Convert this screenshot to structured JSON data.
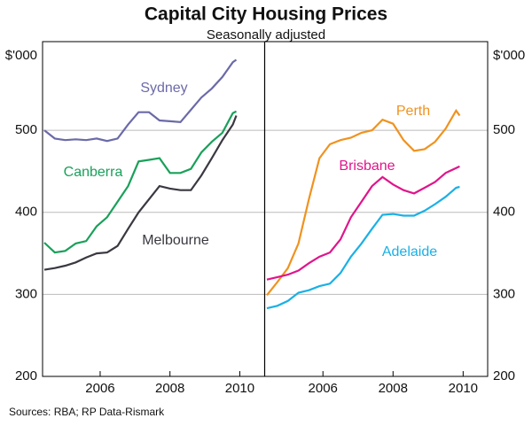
{
  "title": "Capital City Housing Prices",
  "subtitle": "Seasonally adjusted",
  "source": "Sources: RBA; RP Data-Rismark",
  "chart_data": [
    {
      "type": "line",
      "y_label": "$'000",
      "x": [
        2004.4,
        2004.7,
        2005.0,
        2005.3,
        2005.6,
        2005.9,
        2006.2,
        2006.5,
        2006.8,
        2007.1,
        2007.4,
        2007.7,
        2008.0,
        2008.3,
        2008.6,
        2008.9,
        2009.2,
        2009.5,
        2009.8,
        2009.9
      ],
      "xlim": [
        2004.35,
        2010.7
      ],
      "xticks": [
        2006,
        2008,
        2010
      ],
      "ylim": [
        200,
        600
      ],
      "yticks": [
        200,
        300,
        400,
        500
      ],
      "grid": true,
      "series": [
        {
          "name": "Sydney",
          "color": "#6b6aa8",
          "values": [
            500,
            490,
            488,
            489,
            488,
            490,
            487,
            490,
            507,
            522,
            522,
            512,
            511,
            510,
            525,
            540,
            551,
            565,
            583,
            586
          ]
        },
        {
          "name": "Canberra",
          "color": "#1aa05a",
          "values": [
            363,
            351,
            353,
            362,
            365,
            383,
            394,
            413,
            432,
            462,
            464,
            466,
            448,
            448,
            453,
            473,
            486,
            497,
            521,
            523
          ]
        },
        {
          "name": "Melbourne",
          "color": "#3a3840",
          "values": [
            330,
            332,
            335,
            339,
            345,
            350,
            351,
            359,
            380,
            400,
            416,
            432,
            429,
            427,
            427,
            445,
            466,
            488,
            507,
            518
          ]
        }
      ]
    },
    {
      "type": "line",
      "y_label": "$'000",
      "x": [
        2004.4,
        2004.7,
        2005.0,
        2005.3,
        2005.6,
        2005.9,
        2006.2,
        2006.5,
        2006.8,
        2007.1,
        2007.4,
        2007.7,
        2008.0,
        2008.3,
        2008.6,
        2008.9,
        2009.2,
        2009.5,
        2009.8,
        2009.9
      ],
      "xlim": [
        2004.35,
        2010.7
      ],
      "xticks": [
        2006,
        2008,
        2010
      ],
      "ylim": [
        200,
        600
      ],
      "yticks": [
        200,
        300,
        400,
        500
      ],
      "grid": true,
      "series": [
        {
          "name": "Perth",
          "color": "#f0921e",
          "values": [
            299,
            315,
            332,
            362,
            416,
            466,
            483,
            488,
            491,
            497,
            500,
            513,
            508,
            488,
            475,
            477,
            486,
            502,
            524,
            518
          ]
        },
        {
          "name": "Brisbane",
          "color": "#e0158b",
          "values": [
            318,
            321,
            324,
            329,
            338,
            346,
            351,
            367,
            394,
            413,
            432,
            443,
            434,
            427,
            423,
            430,
            437,
            448,
            454,
            456
          ]
        },
        {
          "name": "Adelaide",
          "color": "#1ab0e6",
          "values": [
            283,
            286,
            292,
            302,
            305,
            310,
            313,
            326,
            346,
            362,
            380,
            397,
            398,
            396,
            396,
            402,
            410,
            419,
            430,
            431
          ]
        }
      ]
    }
  ]
}
